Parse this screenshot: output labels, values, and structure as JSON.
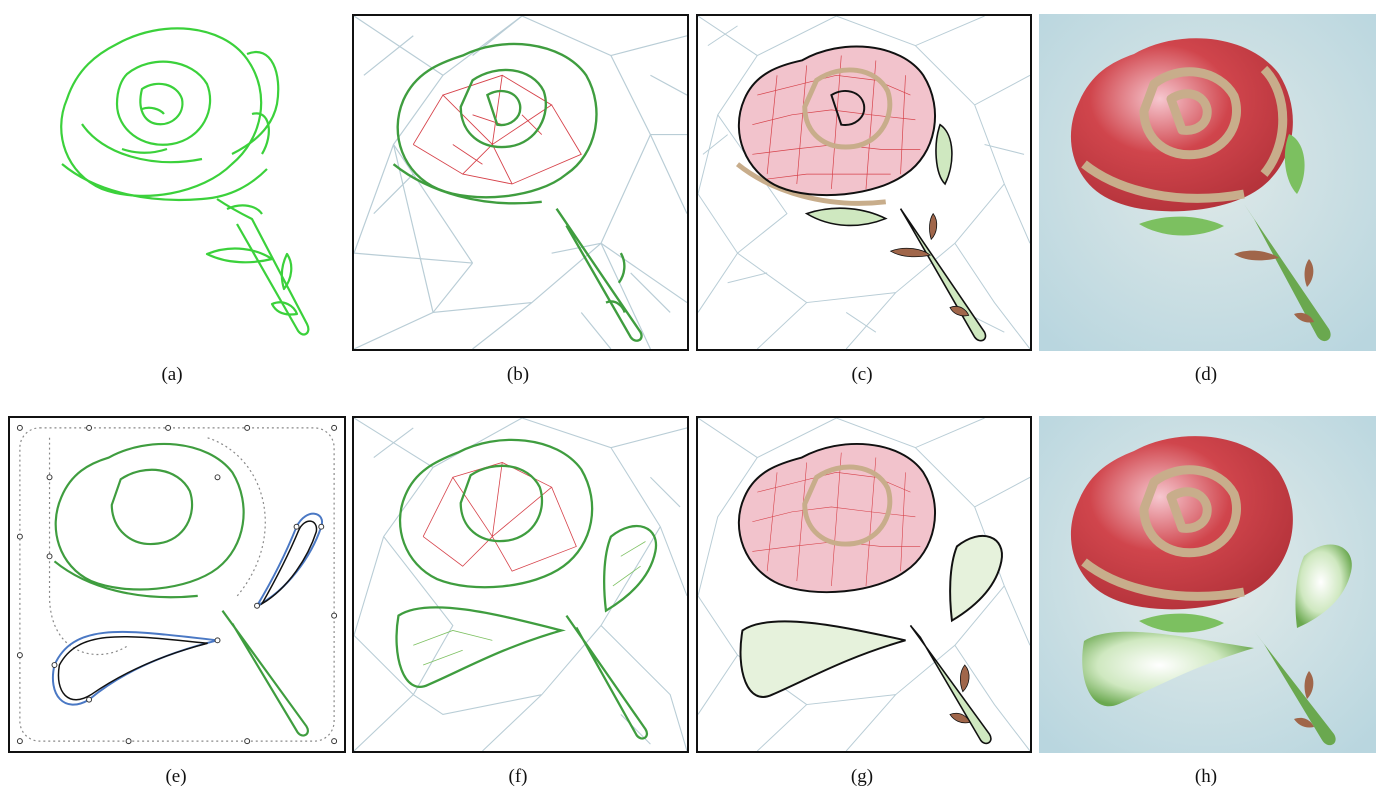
{
  "figure": {
    "panels": [
      {
        "caption": "(a)",
        "style": "outline"
      },
      {
        "caption": "(b)",
        "style": "coarse-mesh"
      },
      {
        "caption": "(c)",
        "style": "fine-mesh"
      },
      {
        "caption": "(d)",
        "style": "rendered"
      },
      {
        "caption": "(e)",
        "style": "control-points"
      },
      {
        "caption": "(f)",
        "style": "coarse-mesh-with-leaves"
      },
      {
        "caption": "(g)",
        "style": "fine-mesh-with-leaves"
      },
      {
        "caption": "(h)",
        "style": "rendered-with-leaves"
      }
    ],
    "colors": {
      "outline": "#3bd13b",
      "outline_dark": "#3f9d3f",
      "mesh": "#b9cdd6",
      "mesh_red": "#d6424a",
      "petal_fill": "#d0454c",
      "petal_pink": "#f2c3cc",
      "band": "#c8ad8b",
      "leaf_green": "#7cc060",
      "stem_green": "#6aa84f",
      "thorn_brown": "#a0664a",
      "background_blue": "#c3dde3",
      "handle_blue": "#4a78c4"
    }
  }
}
